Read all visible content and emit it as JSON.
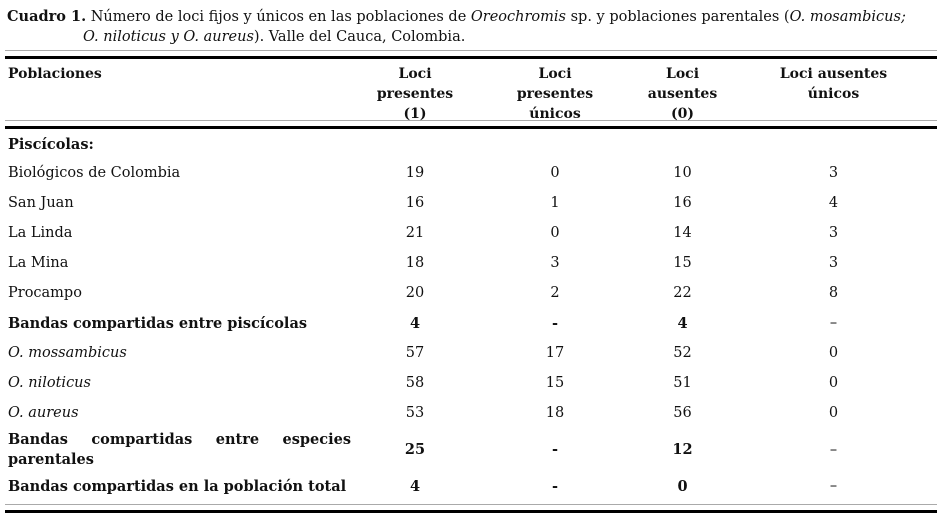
{
  "caption": {
    "label": "Cuadro 1.",
    "text_1": " Número de loci fijos y únicos en las poblaciones de ",
    "italic_1": "Oreochromis",
    "text_2": " sp. y poblaciones parentales (",
    "italic_2": "O. mosambicus;",
    "italic_3": "O. niloticus y O. aureus",
    "text_3": "). Valle del Cauca, Colombia."
  },
  "table": {
    "headers": {
      "col1": "Poblaciones",
      "col2": "Loci\npresentes\n(1)",
      "col3": "Loci\npresentes\núnicos",
      "col4": "Loci\nausentes\n(0)",
      "col5": "Loci ausentes\núnicos"
    },
    "rows": [
      {
        "label": "Piscícolas:",
        "v1": "",
        "v2": "",
        "v3": "",
        "v4": ""
      },
      {
        "label": "Biológicos de Colombia",
        "v1": "19",
        "v2": "0",
        "v3": "10",
        "v4": "3"
      },
      {
        "label": "San Juan",
        "v1": "16",
        "v2": "1",
        "v3": "16",
        "v4": "4"
      },
      {
        "label": "La Linda",
        "v1": "21",
        "v2": "0",
        "v3": "14",
        "v4": "3"
      },
      {
        "label": "La Mina",
        "v1": "18",
        "v2": "3",
        "v3": "15",
        "v4": "3"
      },
      {
        "label": "Procampo",
        "v1": "20",
        "v2": "2",
        "v3": "22",
        "v4": "8"
      },
      {
        "label": "Bandas compartidas entre piscícolas",
        "v1": "4",
        "v2": "-",
        "v3": "4",
        "v4": "–"
      },
      {
        "label": "O. mossambicus",
        "v1": "57",
        "v2": "17",
        "v3": "52",
        "v4": "0"
      },
      {
        "label": "O. niloticus",
        "v1": "58",
        "v2": "15",
        "v3": "51",
        "v4": "0"
      },
      {
        "label": "O. aureus",
        "v1": "53",
        "v2": "18",
        "v3": "56",
        "v4": "0"
      },
      {
        "label": "Bandas compartidas entre especies parentales",
        "v1": "25",
        "v2": "-",
        "v3": "12",
        "v4": "–"
      },
      {
        "label": "Bandas compartidas en la población total",
        "v1": "4",
        "v2": "-",
        "v3": "0",
        "v4": "–"
      }
    ]
  },
  "colors": {
    "background": "#ffffff",
    "text": "#111111",
    "rule_thick": "#000000",
    "rule_thin": "#aaaaaa"
  }
}
